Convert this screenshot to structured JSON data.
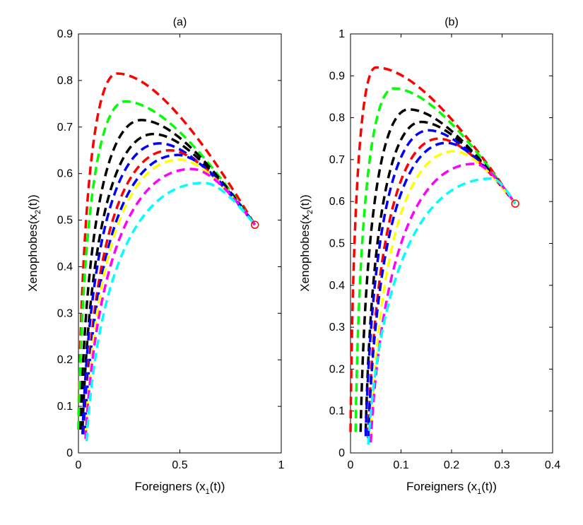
{
  "chart_data": [
    {
      "type": "line",
      "title": "(a)",
      "xlabel": {
        "pre": "Foreigners (x",
        "sub": "1",
        "post": "(t))"
      },
      "ylabel": {
        "pre": "Xenophobes(x",
        "sub": "2",
        "post": "(t))"
      },
      "xlim": [
        0,
        1
      ],
      "ylim": [
        0,
        0.9
      ],
      "xticks": [
        "0",
        "0.5",
        "1"
      ],
      "yticks": [
        "0",
        "0.1",
        "0.2",
        "0.3",
        "0.4",
        "0.5",
        "0.6",
        "0.7",
        "0.8",
        "0.9"
      ],
      "equilibrium": {
        "x": 0.87,
        "y": 0.49,
        "color": "#ff0000"
      },
      "series": [
        {
          "color": "#ff0000",
          "start": [
            0.0,
            0.05
          ],
          "peak": [
            0.19,
            0.815
          ]
        },
        {
          "color": "#00ff00",
          "start": [
            0.0,
            0.05
          ],
          "peak": [
            0.23,
            0.755
          ]
        },
        {
          "color": "#000000",
          "start": [
            0.01,
            0.05
          ],
          "peak": [
            0.31,
            0.715
          ]
        },
        {
          "color": "#000000",
          "start": [
            0.02,
            0.05
          ],
          "peak": [
            0.37,
            0.685
          ]
        },
        {
          "color": "#0000ff",
          "start": [
            0.02,
            0.04
          ],
          "peak": [
            0.4,
            0.665
          ]
        },
        {
          "color": "#ff0000",
          "start": [
            0.03,
            0.04
          ],
          "peak": [
            0.45,
            0.65
          ]
        },
        {
          "color": "#0000ff",
          "start": [
            0.03,
            0.04
          ],
          "peak": [
            0.49,
            0.64
          ]
        },
        {
          "color": "#ffff00",
          "start": [
            0.035,
            0.035
          ],
          "peak": [
            0.5,
            0.63
          ]
        },
        {
          "color": "#ff00ff",
          "start": [
            0.035,
            0.03
          ],
          "peak": [
            0.56,
            0.61
          ]
        },
        {
          "color": "#00ffff",
          "start": [
            0.04,
            0.025
          ],
          "peak": [
            0.62,
            0.58
          ]
        }
      ]
    },
    {
      "type": "line",
      "title": "(b)",
      "xlabel": {
        "pre": "Foreigners (x",
        "sub": "1",
        "post": "(t))"
      },
      "ylabel": {
        "pre": "Xenophobes(x",
        "sub": "2",
        "post": "(t))"
      },
      "xlim": [
        0,
        0.4
      ],
      "ylim": [
        0,
        1
      ],
      "xticks": [
        "0",
        "0.1",
        "0.2",
        "0.3",
        "0.4"
      ],
      "yticks": [
        "0",
        "0.1",
        "0.2",
        "0.3",
        "0.4",
        "0.5",
        "0.6",
        "0.7",
        "0.8",
        "0.9",
        "1"
      ],
      "equilibrium": {
        "x": 0.326,
        "y": 0.595,
        "color": "#ff0000"
      },
      "series": [
        {
          "color": "#ff0000",
          "start": [
            0.0,
            0.05
          ],
          "peak": [
            0.05,
            0.92
          ]
        },
        {
          "color": "#00ff00",
          "start": [
            0.01,
            0.05
          ],
          "peak": [
            0.085,
            0.87
          ]
        },
        {
          "color": "#000000",
          "start": [
            0.02,
            0.05
          ],
          "peak": [
            0.115,
            0.82
          ]
        },
        {
          "color": "#000000",
          "start": [
            0.03,
            0.05
          ],
          "peak": [
            0.14,
            0.79
          ]
        },
        {
          "color": "#0000ff",
          "start": [
            0.03,
            0.04
          ],
          "peak": [
            0.155,
            0.77
          ]
        },
        {
          "color": "#ff0000",
          "start": [
            0.035,
            0.04
          ],
          "peak": [
            0.175,
            0.75
          ]
        },
        {
          "color": "#0000ff",
          "start": [
            0.035,
            0.035
          ],
          "peak": [
            0.19,
            0.74
          ]
        },
        {
          "color": "#ffff00",
          "start": [
            0.04,
            0.03
          ],
          "peak": [
            0.205,
            0.72
          ]
        },
        {
          "color": "#ff00ff",
          "start": [
            0.04,
            0.025
          ],
          "peak": [
            0.245,
            0.69
          ]
        },
        {
          "color": "#00ffff",
          "start": [
            0.035,
            0.02
          ],
          "peak": [
            0.28,
            0.655
          ]
        }
      ]
    }
  ]
}
